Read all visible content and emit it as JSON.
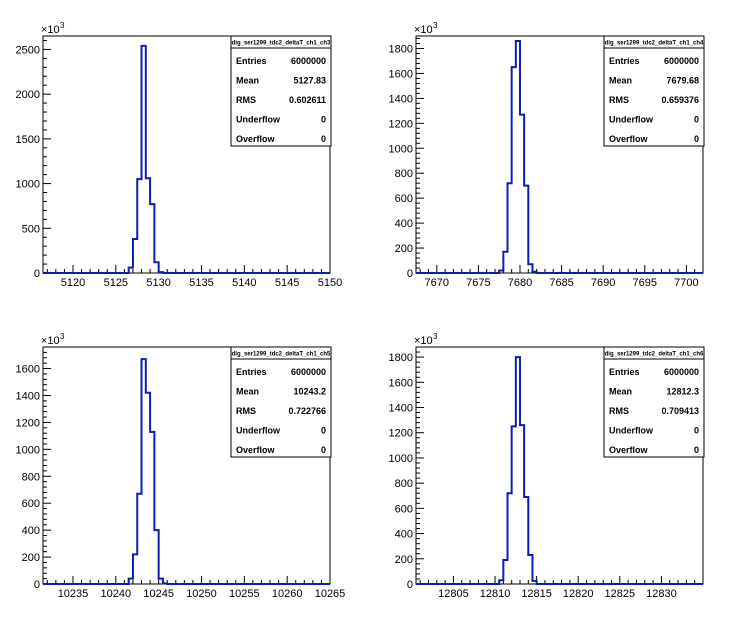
{
  "chart_data": [
    {
      "type": "bar",
      "style": "step-histogram",
      "scale_exponent_label": "×10",
      "scale_exponent_sup": "3",
      "xlim": [
        5116.5,
        5150
      ],
      "ylim": [
        0,
        2650
      ],
      "x_ticks": [
        5120,
        5125,
        5130,
        5135,
        5140,
        5145,
        5150
      ],
      "y_ticks": [
        0,
        500,
        1000,
        1500,
        2000,
        2500
      ],
      "bin_width": 0.5,
      "bin_edges_start": 5126.5,
      "values": [
        60,
        380,
        1050,
        2540,
        1060,
        770,
        120,
        10
      ],
      "line_color": "#0a1fb0",
      "stats": {
        "name": "dig_ser1299_tdc2_deltaT_ch1_ch3",
        "rows": [
          {
            "label": "Entries",
            "value": "6000000"
          },
          {
            "label": "Mean",
            "value": "5127.83"
          },
          {
            "label": "RMS",
            "value": "0.602611"
          },
          {
            "label": "Underflow",
            "value": "0"
          },
          {
            "label": "Overflow",
            "value": "0"
          }
        ]
      }
    },
    {
      "type": "bar",
      "style": "step-histogram",
      "scale_exponent_label": "×10",
      "scale_exponent_sup": "3",
      "xlim": [
        7667.5,
        7702
      ],
      "ylim": [
        0,
        1900
      ],
      "x_ticks": [
        7670,
        7675,
        7680,
        7685,
        7690,
        7695,
        7700
      ],
      "y_ticks": [
        0,
        200,
        400,
        600,
        800,
        1000,
        1200,
        1400,
        1600,
        1800
      ],
      "bin_width": 0.5,
      "bin_edges_start": 7677.5,
      "values": [
        20,
        170,
        720,
        1650,
        1860,
        1270,
        700,
        70,
        10
      ],
      "line_color": "#0a1fb0",
      "stats": {
        "name": "dig_ser1299_tdc2_deltaT_ch1_ch4",
        "rows": [
          {
            "label": "Entries",
            "value": "6000000"
          },
          {
            "label": "Mean",
            "value": "7679.68"
          },
          {
            "label": "RMS",
            "value": "0.659376"
          },
          {
            "label": "Underflow",
            "value": "0"
          },
          {
            "label": "Overflow",
            "value": "0"
          }
        ]
      }
    },
    {
      "type": "bar",
      "style": "step-histogram",
      "scale_exponent_label": "×10",
      "scale_exponent_sup": "3",
      "xlim": [
        10231.5,
        10265
      ],
      "ylim": [
        0,
        1760
      ],
      "x_ticks": [
        10235,
        10240,
        10245,
        10250,
        10255,
        10260,
        10265
      ],
      "y_ticks": [
        0,
        200,
        400,
        600,
        800,
        1000,
        1200,
        1400,
        1600
      ],
      "bin_width": 0.5,
      "bin_edges_start": 10241.5,
      "values": [
        40,
        220,
        670,
        1670,
        1420,
        1130,
        400,
        40,
        5
      ],
      "line_color": "#0a1fb0",
      "stats": {
        "name": "dig_ser1299_tdc2_deltaT_ch1_ch5",
        "rows": [
          {
            "label": "Entries",
            "value": "6000000"
          },
          {
            "label": "Mean",
            "value": "10243.2"
          },
          {
            "label": "RMS",
            "value": "0.722766"
          },
          {
            "label": "Underflow",
            "value": "0"
          },
          {
            "label": "Overflow",
            "value": "0"
          }
        ]
      }
    },
    {
      "type": "bar",
      "style": "step-histogram",
      "scale_exponent_label": "×10",
      "scale_exponent_sup": "3",
      "xlim": [
        12800.5,
        12835
      ],
      "ylim": [
        0,
        1880
      ],
      "x_ticks": [
        12805,
        12810,
        12815,
        12820,
        12825,
        12830
      ],
      "y_ticks": [
        0,
        200,
        400,
        600,
        800,
        1000,
        1200,
        1400,
        1600,
        1800
      ],
      "bin_width": 0.5,
      "bin_edges_start": 12810.5,
      "values": [
        30,
        190,
        720,
        1250,
        1800,
        1260,
        690,
        230,
        25
      ],
      "line_color": "#0a1fb0",
      "stats": {
        "name": "dig_ser1299_tdc2_deltaT_ch1_ch6",
        "rows": [
          {
            "label": "Entries",
            "value": "6000000"
          },
          {
            "label": "Mean",
            "value": "12812.3"
          },
          {
            "label": "RMS",
            "value": "0.709413"
          },
          {
            "label": "Underflow",
            "value": "0"
          },
          {
            "label": "Overflow",
            "value": "0"
          }
        ]
      }
    }
  ]
}
